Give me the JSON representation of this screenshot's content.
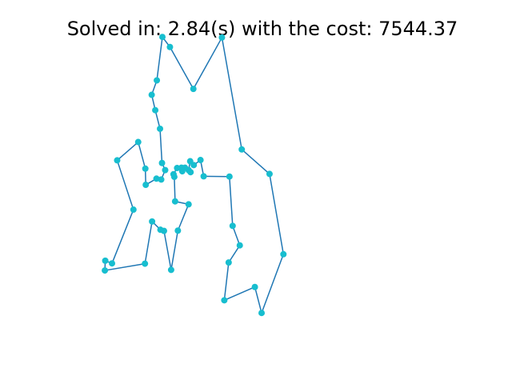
{
  "title": "Solved in: 2.84(s) with the cost: 7544.37",
  "colors": {
    "route_line": "#1f77b4",
    "city_point": "#17becf",
    "background": "#ffffff",
    "title_text": "#000000"
  },
  "chart_data": {
    "type": "line",
    "title": "Solved in: 2.84(s) with the cost: 7544.37",
    "xlabel": "",
    "ylabel": "",
    "axes_visible": false,
    "grid": false,
    "xlim": [
      0,
      1000
    ],
    "ylim": [
      0,
      1000
    ],
    "series": [
      {
        "marker": "circle",
        "closed": true,
        "x": [
          248,
          267,
          326,
          398,
          448,
          518,
          553,
          498,
          481,
          404,
          415,
          443,
          425,
          417,
          352,
          344,
          327,
          318,
          314,
          319,
          305,
          298,
          296,
          285,
          276,
          278,
          280,
          314,
          287,
          270,
          252,
          243,
          222,
          204,
          103,
          104,
          121,
          175,
          134,
          187,
          205,
          206,
          233,
          245,
          255,
          247,
          242,
          230,
          221,
          234
        ],
        "y": [
          1032,
          998,
          856,
          1030,
          651,
          568,
          296,
          97,
          185,
          140,
          268,
          326,
          392,
          559,
          560,
          615,
          598,
          611,
          581,
          574,
          589,
          577,
          589,
          588,
          567,
          558,
          475,
          465,
          376,
          243,
          375,
          379,
          407,
          264,
          241,
          274,
          265,
          447,
          614,
          676,
          586,
          531,
          552,
          549,
          581,
          605,
          721,
          784,
          836,
          885
        ]
      }
    ]
  }
}
